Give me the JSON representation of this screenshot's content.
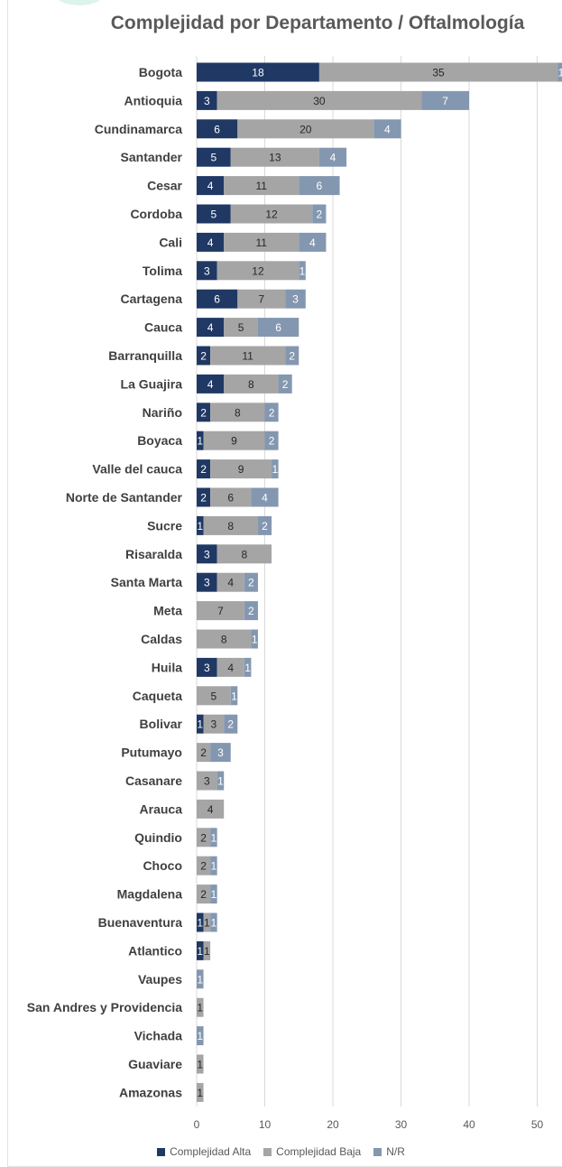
{
  "colors": {
    "alta": "#203864",
    "baja": "#A5A5A5",
    "nr": "#8497B0",
    "grid": "#d9d9d9"
  },
  "chart_data": {
    "type": "bar",
    "orientation": "horizontal",
    "stacked": true,
    "title": "Complejidad por Departamento / Oftalmología",
    "xlim": [
      0,
      50
    ],
    "xticks": [
      0,
      10,
      20,
      30,
      40,
      50
    ],
    "grid": true,
    "legend_position": "bottom",
    "categories": [
      "Bogota",
      "Antioquia",
      "Cundinamarca",
      "Santander",
      "Cesar",
      "Cordoba",
      "Cali",
      "Tolima",
      "Cartagena",
      "Cauca",
      "Barranquilla",
      "La Guajira",
      "Nariño",
      "Boyaca",
      "Valle del cauca",
      "Norte de Santander",
      "Sucre",
      "Risaralda",
      "Santa Marta",
      "Meta",
      "Caldas",
      "Huila",
      "Caqueta",
      "Bolivar",
      "Putumayo",
      "Casanare",
      "Arauca",
      "Quindio",
      "Choco",
      "Magdalena",
      "Buenaventura",
      "Atlantico",
      "Vaupes",
      "San Andres y Providencia",
      "Vichada",
      "Guaviare",
      "Amazonas"
    ],
    "series": [
      {
        "name": "Complejidad Alta",
        "values": [
          18,
          3,
          6,
          5,
          4,
          5,
          4,
          3,
          6,
          4,
          2,
          4,
          2,
          1,
          2,
          2,
          1,
          3,
          3,
          0,
          0,
          3,
          0,
          1,
          0,
          0,
          0,
          0,
          0,
          0,
          1,
          1,
          0,
          0,
          0,
          0,
          0
        ]
      },
      {
        "name": "Complejidad Baja",
        "values": [
          35,
          30,
          20,
          13,
          11,
          12,
          11,
          12,
          7,
          5,
          11,
          8,
          8,
          9,
          9,
          6,
          8,
          8,
          4,
          7,
          8,
          4,
          5,
          3,
          2,
          3,
          4,
          2,
          2,
          2,
          1,
          1,
          0,
          1,
          0,
          1,
          1
        ]
      },
      {
        "name": "N/R",
        "values": [
          1,
          7,
          4,
          4,
          6,
          2,
          4,
          1,
          3,
          6,
          2,
          2,
          2,
          2,
          1,
          4,
          2,
          0,
          2,
          2,
          1,
          1,
          1,
          2,
          3,
          1,
          0,
          1,
          1,
          1,
          1,
          0,
          1,
          0,
          1,
          0,
          0
        ]
      }
    ],
    "data_labels": [
      [
        "18",
        "35",
        "1"
      ],
      [
        "3",
        "30",
        "7"
      ],
      [
        "6",
        "20",
        "4"
      ],
      [
        "5",
        "13",
        "4"
      ],
      [
        "4",
        "11",
        "6"
      ],
      [
        "5",
        "12",
        "2"
      ],
      [
        "4",
        "11",
        "4"
      ],
      [
        "3",
        "12",
        "1"
      ],
      [
        "6",
        "7",
        "3"
      ],
      [
        "4",
        "5",
        "6"
      ],
      [
        "2",
        "11",
        "2"
      ],
      [
        "4",
        "8",
        "2"
      ],
      [
        "2",
        "8",
        "2"
      ],
      [
        "1",
        "9",
        "2"
      ],
      [
        "2",
        "9",
        "1"
      ],
      [
        "2",
        "6",
        "4"
      ],
      [
        "1",
        "8",
        "2"
      ],
      [
        "3",
        "8",
        ""
      ],
      [
        "3",
        "4",
        "2"
      ],
      [
        "",
        "7",
        "2"
      ],
      [
        "",
        "8",
        "1"
      ],
      [
        "3",
        "4",
        "1"
      ],
      [
        "",
        "5",
        "1"
      ],
      [
        "1",
        "3",
        "2"
      ],
      [
        "",
        "2",
        "3"
      ],
      [
        "",
        "3",
        "1"
      ],
      [
        "",
        "4",
        ""
      ],
      [
        "",
        "2",
        "1"
      ],
      [
        "",
        "2",
        "1"
      ],
      [
        "",
        "2",
        "1"
      ],
      [
        "1",
        "1",
        "1"
      ],
      [
        "1",
        "1",
        ""
      ],
      [
        "",
        "",
        "1"
      ],
      [
        "",
        "1",
        ""
      ],
      [
        "",
        "",
        "1"
      ],
      [
        "",
        "1",
        ""
      ],
      [
        "",
        "1",
        ""
      ]
    ]
  }
}
